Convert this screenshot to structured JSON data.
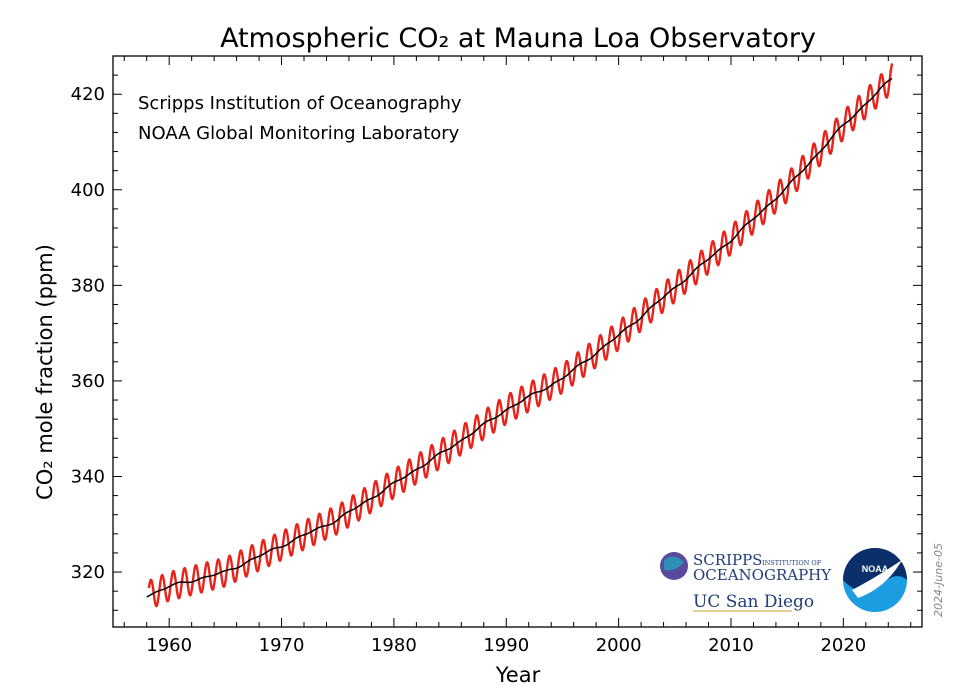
{
  "chart_data": {
    "type": "line",
    "title": "Atmospheric CO₂ at Mauna Loa Observatory",
    "xlabel": "Year",
    "ylabel": "CO₂ mole fraction (ppm)",
    "xlim": [
      1955,
      2027
    ],
    "ylim": [
      308.5,
      428
    ],
    "x_ticks": [
      1960,
      1970,
      1980,
      1990,
      2000,
      2010,
      2020
    ],
    "y_ticks": [
      320,
      340,
      360,
      380,
      400,
      420
    ],
    "grid": false,
    "series": [
      {
        "role": "monthly mean (seasonal)",
        "color": "#e8231a",
        "seasonal_amplitude_ppm": 3.0,
        "x": [
          1958.2,
          2024.4
        ]
      },
      {
        "role": "seasonally adjusted trend",
        "color": "#000000",
        "x": [
          1958,
          1960,
          1965,
          1970,
          1975,
          1980,
          1985,
          1990,
          1995,
          2000,
          2005,
          2010,
          2015,
          2020,
          2024.4
        ],
        "values": [
          315.0,
          317.0,
          320.0,
          325.5,
          331.0,
          338.5,
          346.0,
          354.0,
          360.5,
          369.5,
          379.5,
          389.5,
          400.5,
          413.5,
          423.5
        ]
      }
    ],
    "annotations": [
      "Scripps Institution of Oceanography",
      "NOAA Global Monitoring Laboratory"
    ],
    "date_stamp": "2024-June-05"
  },
  "logos": {
    "scripps_line1": "SCRIPPS",
    "scripps_small": "INSTITUTION OF",
    "scripps_line2": "OCEANOGRAPHY",
    "ucsd": "UC San Diego",
    "noaa": "NOAA"
  }
}
